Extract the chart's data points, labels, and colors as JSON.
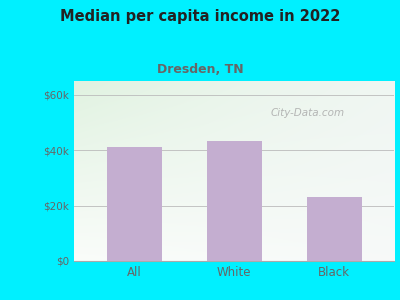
{
  "title": "Median per capita income in 2022",
  "subtitle": "Dresden, TN",
  "categories": [
    "All",
    "White",
    "Black"
  ],
  "values": [
    41000,
    43500,
    23000
  ],
  "bar_color": "#c4aed0",
  "title_color": "#222222",
  "subtitle_color": "#666666",
  "axis_label_color": "#666666",
  "background_outer": "#00f0ff",
  "ylim": [
    0,
    65000
  ],
  "yticks": [
    0,
    20000,
    40000,
    60000
  ],
  "ytick_labels": [
    "$0",
    "$20k",
    "$40k",
    "$60k"
  ],
  "watermark": "City-Data.com",
  "gradient_top": "#ddf0dd",
  "gradient_bottom": "#f5faf5",
  "gradient_right": "#f8f8f8"
}
